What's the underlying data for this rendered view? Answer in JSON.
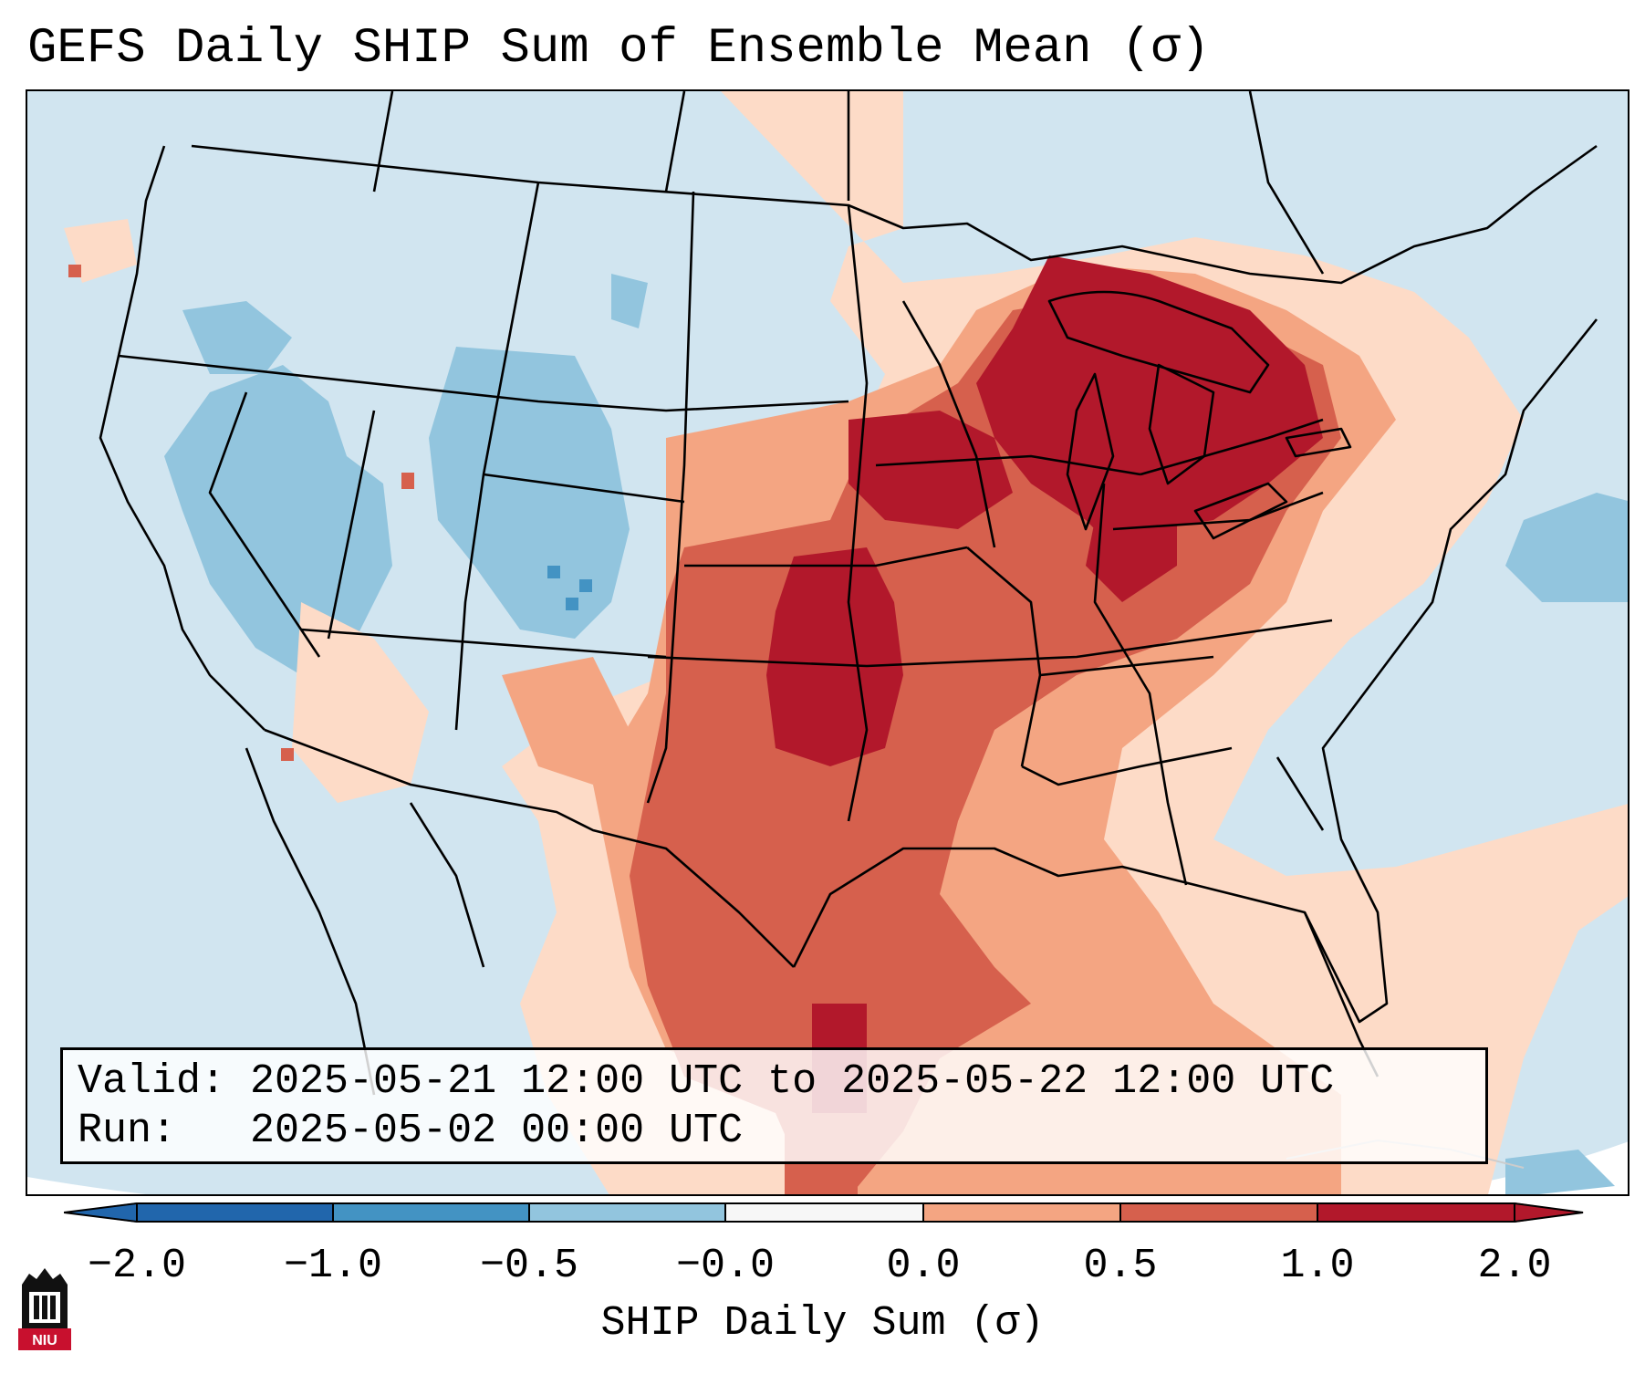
{
  "title": "GEFS Daily SHIP Sum of Ensemble Mean (σ)",
  "info": {
    "valid_line": "Valid: 2025-05-21 12:00 UTC to 2025-05-22 12:00 UTC",
    "run_line": "Run:   2025-05-02 00:00 UTC"
  },
  "colorbar": {
    "label": "SHIP Daily Sum (σ)",
    "ticks": [
      "−2.0",
      "−1.0",
      "−0.5",
      "−0.0",
      "0.0",
      "0.5",
      "1.0",
      "2.0"
    ],
    "colors": [
      "#2166ac",
      "#4393c3",
      "#92c5de",
      "#d1e5f0",
      "#fddbc7",
      "#f4a582",
      "#d6604d",
      "#b2182b"
    ],
    "extend": "both"
  },
  "logo": {
    "text": "NIU",
    "icon": "niu-logo-icon"
  },
  "map": {
    "region": "Contiguous United States",
    "highest_anomaly_areas": [
      "Great Lakes",
      "Oklahoma",
      "Iowa",
      "Ohio Valley"
    ],
    "negative_anomaly_areas": [
      "Great Basin",
      "Colorado",
      "Wyoming",
      "Pacific Northwest"
    ]
  }
}
